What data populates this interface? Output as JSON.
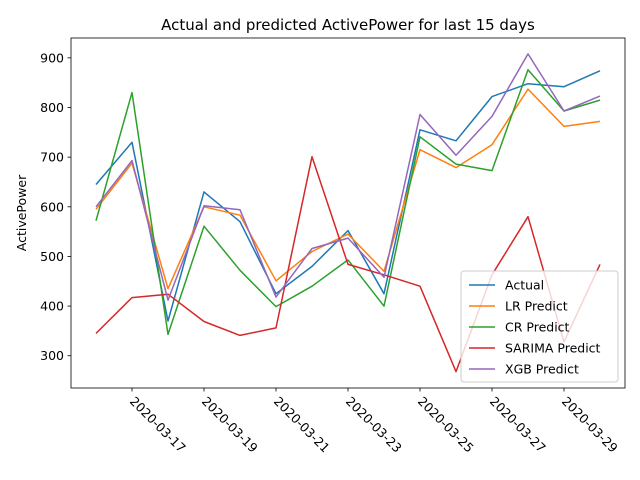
{
  "chart_data": {
    "type": "line",
    "title": "Actual and predicted ActivePower for last 15 days",
    "xlabel": "",
    "ylabel": "ActivePower",
    "x": [
      "2020-03-16",
      "2020-03-17",
      "2020-03-18",
      "2020-03-19",
      "2020-03-20",
      "2020-03-21",
      "2020-03-22",
      "2020-03-23",
      "2020-03-24",
      "2020-03-25",
      "2020-03-26",
      "2020-03-27",
      "2020-03-28",
      "2020-03-29",
      "2020-03-30"
    ],
    "x_tick_labels": [
      "2020-03-17",
      "2020-03-19",
      "2020-03-21",
      "2020-03-23",
      "2020-03-25",
      "2020-03-27",
      "2020-03-29"
    ],
    "y_ticks": [
      300,
      400,
      500,
      600,
      700,
      800,
      900
    ],
    "ylim": [
      235,
      940
    ],
    "grid": false,
    "legend_position": "lower right",
    "series": [
      {
        "name": "Actual",
        "color": "#1f77b4",
        "values": [
          645,
          730,
          370,
          630,
          570,
          425,
          480,
          552,
          425,
          755,
          733,
          822,
          848,
          842,
          874
        ]
      },
      {
        "name": "LR Predict",
        "color": "#ff7f0e",
        "values": [
          595,
          688,
          435,
          600,
          583,
          451,
          510,
          545,
          470,
          715,
          679,
          725,
          837,
          762,
          772
        ]
      },
      {
        "name": "CR Predict",
        "color": "#2ca02c",
        "values": [
          572,
          830,
          343,
          561,
          472,
          399,
          440,
          493,
          400,
          741,
          686,
          673,
          876,
          793,
          815
        ]
      },
      {
        "name": "SARIMA Predict",
        "color": "#d62728",
        "values": [
          345,
          417,
          424,
          369,
          341,
          356,
          701,
          484,
          463,
          440,
          268,
          463,
          580,
          328,
          484
        ]
      },
      {
        "name": "XGB Predict",
        "color": "#9467bd",
        "values": [
          600,
          693,
          412,
          602,
          594,
          418,
          516,
          537,
          458,
          786,
          704,
          782,
          908,
          793,
          823
        ]
      }
    ]
  }
}
